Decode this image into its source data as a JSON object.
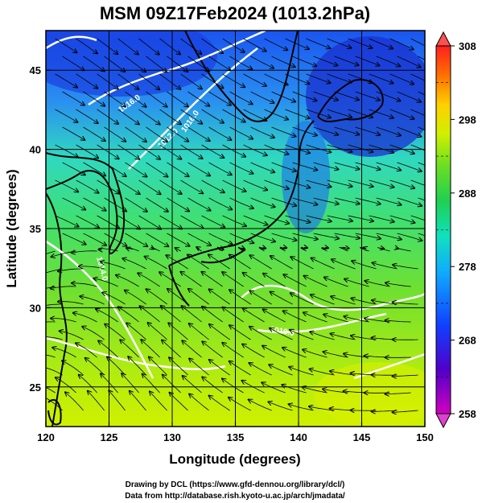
{
  "title": "MSM 09Z17Feb2024 (1013.2hPa)",
  "xlabel": "Longitude (degrees)",
  "ylabel": "Latitude  (degrees)",
  "credit_line1": "Drawing by DCL (https://www.gfd-dennou.org/library/dcl/)",
  "credit_line2": "Data from http://database.rish.kyoto-u.ac.jp/arch/jmadata/",
  "x_ticks": [
    "120",
    "125",
    "130",
    "135",
    "140",
    "145",
    "150"
  ],
  "y_ticks": [
    "25",
    "30",
    "35",
    "40",
    "45"
  ],
  "x_range": [
    120,
    150
  ],
  "y_range": [
    22.5,
    47.5
  ],
  "colorbar": {
    "ticks": [
      "308",
      "298",
      "288",
      "278",
      "268",
      "258"
    ],
    "range": [
      258,
      308
    ],
    "colors": [
      "#c000c0",
      "#4000c0",
      "#0040ff",
      "#00a0ff",
      "#00e0d0",
      "#20d060",
      "#60e020",
      "#c0f000",
      "#ffff00",
      "#ffb000",
      "#ff5000",
      "#ff2020"
    ]
  },
  "contour_labels": [
    "1016.0",
    "1012.0",
    "1016.0",
    "1014.0",
    "1010.0"
  ]
}
